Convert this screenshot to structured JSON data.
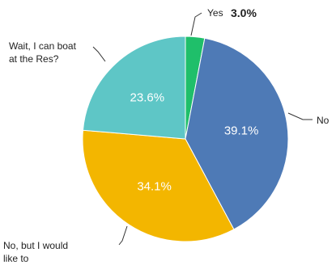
{
  "chart_data": {
    "type": "pie",
    "start_angle_deg": 0,
    "direction": "clockwise",
    "slices": [
      {
        "label": "Yes",
        "value": 3.0,
        "value_label": "3.0%",
        "color": "#1fbf6a",
        "label_placement": "outside"
      },
      {
        "label": "No",
        "value": 39.1,
        "value_label": "39.1%",
        "color": "#4e7ab6",
        "label_placement": "inside"
      },
      {
        "label": "No, but I would like to",
        "label_lines": [
          "No, but I would",
          "like to"
        ],
        "value": 34.1,
        "value_label": "34.1%",
        "color": "#f3b600",
        "label_placement": "inside"
      },
      {
        "label": "Wait, I can boat at the Res?",
        "label_lines": [
          "Wait, I can boat",
          "at the Res?"
        ],
        "value": 23.6,
        "value_label": "23.6%",
        "color": "#5ec6c6",
        "label_placement": "inside"
      }
    ],
    "title": "",
    "legend": "none"
  }
}
